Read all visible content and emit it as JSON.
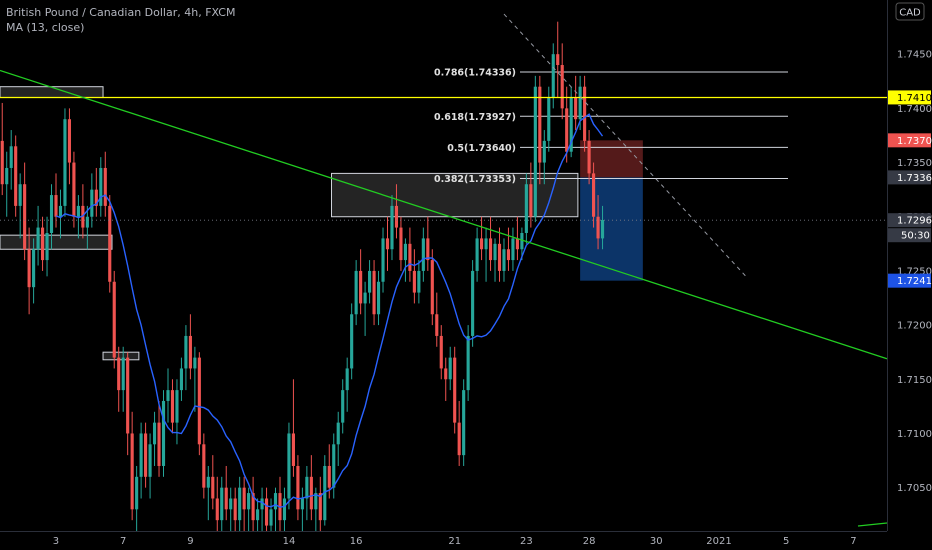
{
  "header": {
    "symbol_line": "British Pound / Canadian Dollar, 4h, FXCM",
    "indicator_line": "MA (13, close)"
  },
  "currency_badge": "CAD",
  "colors": {
    "background": "#000000",
    "candle_up": "#26a69a",
    "candle_down": "#ef5350",
    "ma_line": "#2962ff",
    "trend_line": "#22cc22",
    "level_line": "#ffff00",
    "fib_line": "#d1d4dc",
    "box_fill": "#2a2a2a",
    "stop_zone": "#5d1d1d",
    "target_zone": "#0d3a73",
    "axis_text": "#b2b5be"
  },
  "chart_data": {
    "type": "candlestick",
    "title": "British Pound / Canadian Dollar, 4h, FXCM",
    "ylim": [
      1.701,
      1.75
    ],
    "y_ticks": [
      1.705,
      1.71,
      1.715,
      1.72,
      1.725,
      1.73,
      1.735,
      1.74,
      1.745
    ],
    "x_ticks": [
      {
        "label": "3",
        "bar": 12
      },
      {
        "label": "7",
        "bar": 27
      },
      {
        "label": "9",
        "bar": 42
      },
      {
        "label": "14",
        "bar": 64
      },
      {
        "label": "16",
        "bar": 79
      },
      {
        "label": "21",
        "bar": 101
      },
      {
        "label": "23",
        "bar": 117
      },
      {
        "label": "28",
        "bar": 131
      },
      {
        "label": "30",
        "bar": 146
      },
      {
        "label": "2021",
        "bar": 160
      },
      {
        "label": "5",
        "bar": 175
      },
      {
        "label": "7",
        "bar": 190
      }
    ],
    "bars_total": 198,
    "candles": [
      [
        1.737,
        1.7405,
        1.732,
        1.733
      ],
      [
        1.733,
        1.736,
        1.73,
        1.7345
      ],
      [
        1.7345,
        1.738,
        1.7325,
        1.7365
      ],
      [
        1.7365,
        1.7375,
        1.73,
        1.731
      ],
      [
        1.731,
        1.734,
        1.728,
        1.733
      ],
      [
        1.733,
        1.735,
        1.726,
        1.727
      ],
      [
        1.727,
        1.729,
        1.721,
        1.7235
      ],
      [
        1.7235,
        1.728,
        1.722,
        1.727
      ],
      [
        1.727,
        1.731,
        1.7255,
        1.729
      ],
      [
        1.729,
        1.73,
        1.725,
        1.726
      ],
      [
        1.726,
        1.73,
        1.7245,
        1.7285
      ],
      [
        1.7285,
        1.733,
        1.727,
        1.732
      ],
      [
        1.732,
        1.734,
        1.729,
        1.73
      ],
      [
        1.73,
        1.7325,
        1.728,
        1.731
      ],
      [
        1.731,
        1.74,
        1.73,
        1.739
      ],
      [
        1.739,
        1.74,
        1.733,
        1.735
      ],
      [
        1.735,
        1.736,
        1.729,
        1.73
      ],
      [
        1.73,
        1.732,
        1.728,
        1.731
      ],
      [
        1.731,
        1.733,
        1.728,
        1.729
      ],
      [
        1.729,
        1.731,
        1.727,
        1.73
      ],
      [
        1.73,
        1.734,
        1.729,
        1.7325
      ],
      [
        1.7325,
        1.7345,
        1.73,
        1.731
      ],
      [
        1.731,
        1.7355,
        1.73,
        1.7345
      ],
      [
        1.7345,
        1.736,
        1.73,
        1.731
      ],
      [
        1.731,
        1.732,
        1.723,
        1.724
      ],
      [
        1.724,
        1.725,
        1.716,
        1.717
      ],
      [
        1.717,
        1.718,
        1.712,
        1.714
      ],
      [
        1.714,
        1.718,
        1.712,
        1.717
      ],
      [
        1.717,
        1.7175,
        1.708,
        1.71
      ],
      [
        1.71,
        1.712,
        1.702,
        1.703
      ],
      [
        1.703,
        1.707,
        1.701,
        1.706
      ],
      [
        1.706,
        1.711,
        1.704,
        1.71
      ],
      [
        1.71,
        1.711,
        1.705,
        1.706
      ],
      [
        1.706,
        1.71,
        1.704,
        1.709
      ],
      [
        1.709,
        1.712,
        1.707,
        1.711
      ],
      [
        1.711,
        1.713,
        1.706,
        1.707
      ],
      [
        1.707,
        1.714,
        1.706,
        1.713
      ],
      [
        1.713,
        1.716,
        1.711,
        1.714
      ],
      [
        1.714,
        1.715,
        1.71,
        1.711
      ],
      [
        1.711,
        1.715,
        1.709,
        1.714
      ],
      [
        1.714,
        1.717,
        1.713,
        1.716
      ],
      [
        1.716,
        1.72,
        1.714,
        1.719
      ],
      [
        1.719,
        1.721,
        1.715,
        1.716
      ],
      [
        1.716,
        1.718,
        1.712,
        1.717
      ],
      [
        1.717,
        1.7175,
        1.708,
        1.709
      ],
      [
        1.709,
        1.71,
        1.704,
        1.705
      ],
      [
        1.705,
        1.707,
        1.702,
        1.706
      ],
      [
        1.706,
        1.708,
        1.703,
        1.704
      ],
      [
        1.704,
        1.706,
        1.701,
        1.702
      ],
      [
        1.702,
        1.706,
        1.701,
        1.705
      ],
      [
        1.705,
        1.707,
        1.702,
        1.703
      ],
      [
        1.703,
        1.705,
        1.701,
        1.704
      ],
      [
        1.704,
        1.705,
        1.701,
        1.702
      ],
      [
        1.702,
        1.706,
        1.701,
        1.705
      ],
      [
        1.705,
        1.706,
        1.701,
        1.703
      ],
      [
        1.703,
        1.705,
        1.701,
        1.7045
      ],
      [
        1.7045,
        1.706,
        1.701,
        1.702
      ],
      [
        1.702,
        1.704,
        1.701,
        1.703
      ],
      [
        1.703,
        1.705,
        1.701,
        1.704
      ],
      [
        1.704,
        1.705,
        1.701,
        1.7015
      ],
      [
        1.7015,
        1.704,
        1.701,
        1.703
      ],
      [
        1.703,
        1.705,
        1.701,
        1.7045
      ],
      [
        1.7045,
        1.706,
        1.701,
        1.702
      ],
      [
        1.702,
        1.705,
        1.701,
        1.704
      ],
      [
        1.704,
        1.711,
        1.703,
        1.71
      ],
      [
        1.71,
        1.715,
        1.706,
        1.707
      ],
      [
        1.707,
        1.708,
        1.702,
        1.703
      ],
      [
        1.703,
        1.705,
        1.701,
        1.704
      ],
      [
        1.704,
        1.707,
        1.702,
        1.706
      ],
      [
        1.706,
        1.708,
        1.702,
        1.703
      ],
      [
        1.703,
        1.705,
        1.701,
        1.7045
      ],
      [
        1.7045,
        1.706,
        1.701,
        1.702
      ],
      [
        1.702,
        1.708,
        1.7015,
        1.707
      ],
      [
        1.707,
        1.709,
        1.704,
        1.705
      ],
      [
        1.705,
        1.71,
        1.704,
        1.709
      ],
      [
        1.709,
        1.712,
        1.707,
        1.711
      ],
      [
        1.711,
        1.715,
        1.71,
        1.714
      ],
      [
        1.714,
        1.717,
        1.712,
        1.716
      ],
      [
        1.716,
        1.722,
        1.715,
        1.721
      ],
      [
        1.721,
        1.726,
        1.72,
        1.725
      ],
      [
        1.725,
        1.727,
        1.721,
        1.722
      ],
      [
        1.722,
        1.724,
        1.719,
        1.723
      ],
      [
        1.723,
        1.726,
        1.722,
        1.725
      ],
      [
        1.725,
        1.726,
        1.72,
        1.721
      ],
      [
        1.721,
        1.725,
        1.72,
        1.724
      ],
      [
        1.724,
        1.729,
        1.723,
        1.728
      ],
      [
        1.728,
        1.73,
        1.725,
        1.727
      ],
      [
        1.727,
        1.732,
        1.726,
        1.731
      ],
      [
        1.731,
        1.733,
        1.728,
        1.729
      ],
      [
        1.729,
        1.73,
        1.725,
        1.726
      ],
      [
        1.726,
        1.728,
        1.724,
        1.7275
      ],
      [
        1.7275,
        1.729,
        1.724,
        1.725
      ],
      [
        1.725,
        1.727,
        1.722,
        1.723
      ],
      [
        1.723,
        1.726,
        1.722,
        1.725
      ],
      [
        1.725,
        1.729,
        1.724,
        1.728
      ],
      [
        1.728,
        1.73,
        1.725,
        1.726
      ],
      [
        1.726,
        1.727,
        1.72,
        1.721
      ],
      [
        1.721,
        1.723,
        1.718,
        1.719
      ],
      [
        1.719,
        1.72,
        1.715,
        1.716
      ],
      [
        1.716,
        1.717,
        1.713,
        1.715
      ],
      [
        1.715,
        1.718,
        1.714,
        1.717
      ],
      [
        1.717,
        1.718,
        1.71,
        1.711
      ],
      [
        1.711,
        1.713,
        1.707,
        1.708
      ],
      [
        1.708,
        1.715,
        1.707,
        1.714
      ],
      [
        1.714,
        1.72,
        1.713,
        1.719
      ],
      [
        1.719,
        1.726,
        1.718,
        1.725
      ],
      [
        1.725,
        1.729,
        1.724,
        1.728
      ],
      [
        1.728,
        1.73,
        1.726,
        1.727
      ],
      [
        1.727,
        1.729,
        1.724,
        1.728
      ],
      [
        1.728,
        1.73,
        1.725,
        1.726
      ],
      [
        1.726,
        1.728,
        1.724,
        1.7275
      ],
      [
        1.7275,
        1.729,
        1.724,
        1.725
      ],
      [
        1.725,
        1.728,
        1.724,
        1.727
      ],
      [
        1.727,
        1.729,
        1.725,
        1.726
      ],
      [
        1.726,
        1.729,
        1.725,
        1.728
      ],
      [
        1.728,
        1.73,
        1.726,
        1.727
      ],
      [
        1.727,
        1.729,
        1.726,
        1.7285
      ],
      [
        1.7285,
        1.734,
        1.7275,
        1.733
      ],
      [
        1.733,
        1.735,
        1.729,
        1.73
      ],
      [
        1.73,
        1.743,
        1.7295,
        1.742
      ],
      [
        1.742,
        1.743,
        1.733,
        1.735
      ],
      [
        1.735,
        1.738,
        1.733,
        1.737
      ],
      [
        1.737,
        1.742,
        1.736,
        1.741
      ],
      [
        1.741,
        1.746,
        1.74,
        1.745
      ],
      [
        1.745,
        1.748,
        1.741,
        1.744
      ],
      [
        1.744,
        1.746,
        1.739,
        1.74
      ],
      [
        1.74,
        1.742,
        1.735,
        1.736
      ],
      [
        1.736,
        1.742,
        1.7355,
        1.741
      ],
      [
        1.741,
        1.743,
        1.738,
        1.739
      ],
      [
        1.739,
        1.743,
        1.738,
        1.742
      ],
      [
        1.742,
        1.743,
        1.736,
        1.737
      ],
      [
        1.737,
        1.738,
        1.733,
        1.734
      ],
      [
        1.734,
        1.735,
        1.729,
        1.73
      ],
      [
        1.73,
        1.732,
        1.727,
        1.728
      ],
      [
        1.728,
        1.731,
        1.727,
        1.7297
      ]
    ],
    "ma_period": 13,
    "levels": {
      "level_line": 1.741,
      "current_price": 1.72968,
      "stop": 1.73705,
      "entry": 1.73363,
      "target": 1.7241
    },
    "fib_levels": [
      {
        "label": "0.786(1.74336)",
        "price": 1.74336
      },
      {
        "label": "0.618(1.73927)",
        "price": 1.73927
      },
      {
        "label": "0.5(1.73640)",
        "price": 1.7364
      },
      {
        "label": "0.382(1.73353)",
        "price": 1.73353
      }
    ],
    "price_tags": [
      {
        "label": "1.74101",
        "price": 1.74101,
        "bg": "#ffff00",
        "fg": "#000000"
      },
      {
        "label": "1.73705",
        "price": 1.73705,
        "bg": "#ef5350",
        "fg": "#ffffff"
      },
      {
        "label": "1.73363",
        "price": 1.73363,
        "bg": "#363a45",
        "fg": "#ffffff"
      },
      {
        "label": "1.72968",
        "price": 1.72968,
        "bg": "#363a45",
        "fg": "#ffffff"
      },
      {
        "label": "1.72410",
        "price": 1.7241,
        "bg": "#1e53e5",
        "fg": "#ffffff"
      }
    ],
    "countdown": "50:30",
    "trend_line": {
      "p1": [
        0,
        1.7435
      ],
      "p2": [
        198,
        1.7169
      ]
    },
    "dashed_trend": {
      "p1": [
        112,
        1.7487
      ],
      "p2": [
        166,
        1.7245
      ]
    },
    "boxes": [
      {
        "name": "supply-box-top-left",
        "x1": 0,
        "x2": 23,
        "p1": 1.742,
        "p2": 1.741
      },
      {
        "name": "supply-box-left",
        "x1": 0,
        "x2": 25,
        "p1": 1.7283,
        "p2": 1.727
      },
      {
        "name": "box-small-mid",
        "x1": 23,
        "x2": 31,
        "p1": 1.7175,
        "p2": 1.7168
      },
      {
        "name": "supply-box-right",
        "x1": 74,
        "x2": 129,
        "p1": 1.734,
        "p2": 1.73
      }
    ],
    "position": {
      "x1": 129,
      "x2": 143
    }
  }
}
